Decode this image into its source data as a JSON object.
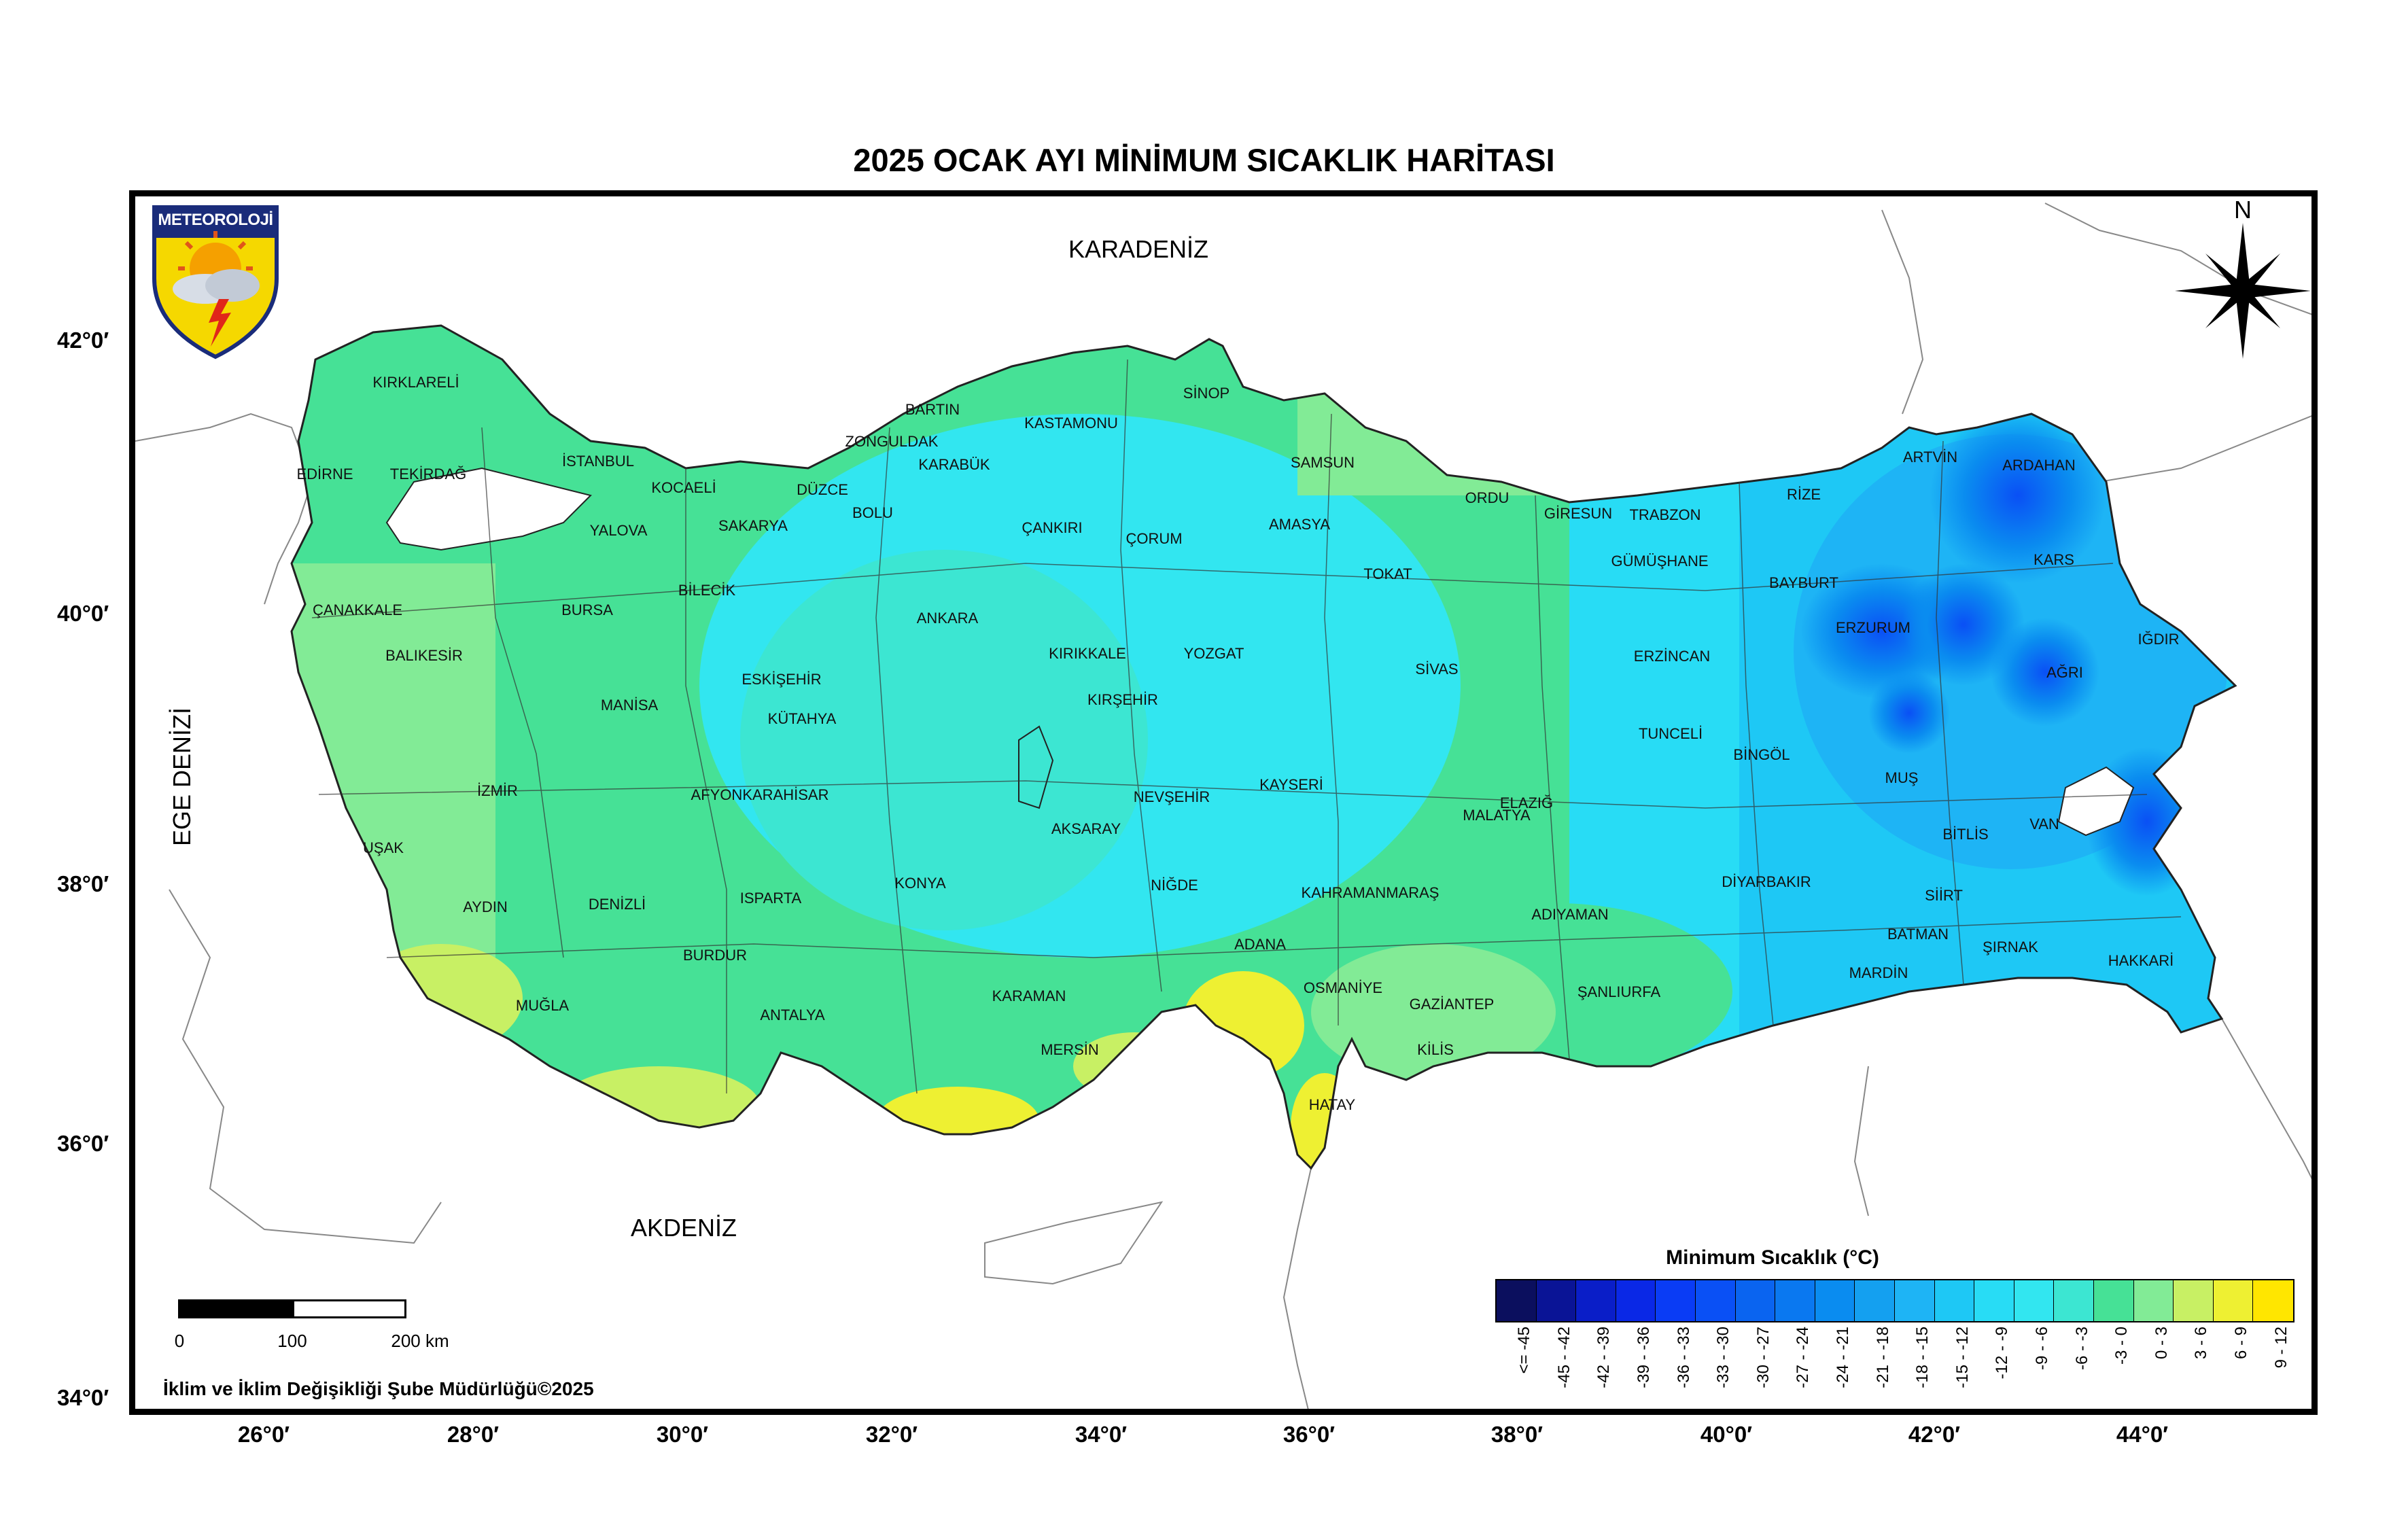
{
  "title": "2025 OCAK AYI MİNİMUM SICAKLIK HARİTASI",
  "logo": {
    "text": "METEOROLOJİ",
    "icon": "meteoroloji-shield-logo"
  },
  "north_arrow": {
    "letter": "N",
    "icon": "north-arrow-compass-icon"
  },
  "seas": {
    "karadeniz": "KARADENİZ",
    "akdeniz": "AKDENİZ",
    "ege": "EGE DENİZİ"
  },
  "lat_labels": [
    "42°0′",
    "40°0′",
    "38°0′",
    "36°0′",
    "34°0′"
  ],
  "lon_labels": [
    "26°0′",
    "28°0′",
    "30°0′",
    "32°0′",
    "34°0′",
    "36°0′",
    "38°0′",
    "40°0′",
    "42°0′",
    "44°0′"
  ],
  "scale": {
    "zero": "0",
    "mid": "100",
    "end": "200 km"
  },
  "credit": "İklim ve İklim Değişikliği Şube Müdürlüğü©2025",
  "legend": {
    "title": "Minimum Sıcaklık (°C)",
    "classes": [
      {
        "label": "<= -45",
        "color": "#0b0f5e"
      },
      {
        "label": "-45 - -42",
        "color": "#0a1496"
      },
      {
        "label": "-42 - -39",
        "color": "#0a1ec8"
      },
      {
        "label": "-39 - -36",
        "color": "#0a28e6"
      },
      {
        "label": "-36 - -33",
        "color": "#0a3cf5"
      },
      {
        "label": "-33 - -30",
        "color": "#0a50f5"
      },
      {
        "label": "-30 - -27",
        "color": "#0a64f0"
      },
      {
        "label": "-27 - -24",
        "color": "#0a78f0"
      },
      {
        "label": "-24 - -21",
        "color": "#0a8cf0"
      },
      {
        "label": "-21 - -18",
        "color": "#14a0f0"
      },
      {
        "label": "-18 - -15",
        "color": "#1eb4f5"
      },
      {
        "label": "-15 - -12",
        "color": "#1ec8f5"
      },
      {
        "label": "-12 - -9",
        "color": "#28dcf5"
      },
      {
        "label": "-9 - -6",
        "color": "#32e6f0"
      },
      {
        "label": "-6 - -3",
        "color": "#3ce6d2"
      },
      {
        "label": "-3 - 0",
        "color": "#46e196"
      },
      {
        "label": "0 - 3",
        "color": "#82eb96"
      },
      {
        "label": "3 - 6",
        "color": "#c8f064"
      },
      {
        "label": "6 - 9",
        "color": "#eef032"
      },
      {
        "label": "9 - 12",
        "color": "#ffe600"
      }
    ]
  },
  "provinces": [
    {
      "name": "KIRKLARELİ"
    },
    {
      "name": "EDİRNE"
    },
    {
      "name": "TEKİRDAĞ"
    },
    {
      "name": "İSTANBUL"
    },
    {
      "name": "KOCAELİ"
    },
    {
      "name": "YALOVA"
    },
    {
      "name": "SAKARYA"
    },
    {
      "name": "DÜZCE"
    },
    {
      "name": "BOLU"
    },
    {
      "name": "ZONGULDAK"
    },
    {
      "name": "BARTIN"
    },
    {
      "name": "KARABÜK"
    },
    {
      "name": "KASTAMONU"
    },
    {
      "name": "SİNOP"
    },
    {
      "name": "SAMSUN"
    },
    {
      "name": "ORDU"
    },
    {
      "name": "GİRESUN"
    },
    {
      "name": "TRABZON"
    },
    {
      "name": "RİZE"
    },
    {
      "name": "ARTVİN"
    },
    {
      "name": "ARDAHAN"
    },
    {
      "name": "KARS"
    },
    {
      "name": "IĞDIR"
    },
    {
      "name": "AĞRI"
    },
    {
      "name": "ERZURUM"
    },
    {
      "name": "BAYBURT"
    },
    {
      "name": "GÜMÜŞHANE"
    },
    {
      "name": "ERZİNCAN"
    },
    {
      "name": "TOKAT"
    },
    {
      "name": "AMASYA"
    },
    {
      "name": "ÇORUM"
    },
    {
      "name": "ÇANKIRI"
    },
    {
      "name": "ANKARA"
    },
    {
      "name": "KIRIKKALE"
    },
    {
      "name": "YOZGAT"
    },
    {
      "name": "SİVAS"
    },
    {
      "name": "KIRŞEHİR"
    },
    {
      "name": "NEVŞEHİR"
    },
    {
      "name": "KAYSERİ"
    },
    {
      "name": "AKSARAY"
    },
    {
      "name": "NİĞDE"
    },
    {
      "name": "KONYA"
    },
    {
      "name": "KARAMAN"
    },
    {
      "name": "MERSİN"
    },
    {
      "name": "ADANA"
    },
    {
      "name": "OSMANİYE"
    },
    {
      "name": "HATAY"
    },
    {
      "name": "KİLİS"
    },
    {
      "name": "GAZİANTEP"
    },
    {
      "name": "KAHRAMANMARAŞ"
    },
    {
      "name": "ADIYAMAN"
    },
    {
      "name": "ŞANLIURFA"
    },
    {
      "name": "MALATYA"
    },
    {
      "name": "ELAZIĞ"
    },
    {
      "name": "TUNCELİ"
    },
    {
      "name": "BİNGÖL"
    },
    {
      "name": "MUŞ"
    },
    {
      "name": "BİTLİS"
    },
    {
      "name": "VAN"
    },
    {
      "name": "HAKKARİ"
    },
    {
      "name": "ŞIRNAK"
    },
    {
      "name": "SİİRT"
    },
    {
      "name": "BATMAN"
    },
    {
      "name": "MARDİN"
    },
    {
      "name": "DİYARBAKIR"
    },
    {
      "name": "ÇANAKKALE"
    },
    {
      "name": "BALIKESİR"
    },
    {
      "name": "BURSA"
    },
    {
      "name": "BİLECİK"
    },
    {
      "name": "ESKİŞEHİR"
    },
    {
      "name": "KÜTAHYA"
    },
    {
      "name": "MANİSA"
    },
    {
      "name": "İZMİR"
    },
    {
      "name": "UŞAK"
    },
    {
      "name": "AFYONKARAHİSAR"
    },
    {
      "name": "AYDIN"
    },
    {
      "name": "DENİZLİ"
    },
    {
      "name": "ISPARTA"
    },
    {
      "name": "BURDUR"
    },
    {
      "name": "MUĞLA"
    },
    {
      "name": "ANTALYA"
    }
  ]
}
